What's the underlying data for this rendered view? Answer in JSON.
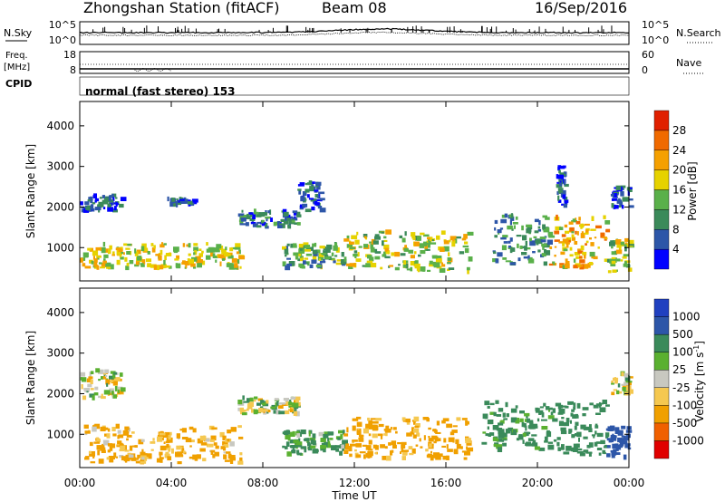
{
  "header": {
    "title": "Zhongshan Station (fitACF)",
    "beam": "Beam 08",
    "date": "16/Sep/2016"
  },
  "noise_panel": {
    "left_label": "N.Sky",
    "right_label": "N.Search",
    "left_ticks": [
      "10^5",
      "10^0"
    ],
    "right_ticks": [
      "10^5",
      "10^0"
    ]
  },
  "freq_panel": {
    "left_label_1": "Freq.",
    "left_label_2": "[MHz]",
    "left_ticks": [
      "18",
      "8"
    ],
    "right_label": "Nave",
    "right_ticks": [
      "60",
      "0"
    ],
    "cpid_label": "CPID"
  },
  "mode_text": "normal (fast stereo) 153",
  "x_axis": {
    "label": "Time UT",
    "ticks": [
      "00:00",
      "04:00",
      "08:00",
      "12:00",
      "16:00",
      "20:00",
      "00:00"
    ]
  },
  "power_panel": {
    "ylabel": "Slant Range [km]",
    "yticks": [
      "1000",
      "2000",
      "3000",
      "4000"
    ],
    "colorbar_title": "Power [dB]",
    "colorbar_labels": [
      "4",
      "8",
      "12",
      "16",
      "20",
      "24",
      "28"
    ],
    "colors": [
      "#0000ff",
      "#2d56a8",
      "#3b8a5a",
      "#5ab04a",
      "#e6d200",
      "#f5a000",
      "#f06a00",
      "#e02000"
    ]
  },
  "velocity_panel": {
    "ylabel": "Slant Range [km]",
    "yticks": [
      "1000",
      "2000",
      "3000",
      "4000"
    ],
    "colorbar_title": "Velocity [m s",
    "colorbar_sup": "-1",
    "colorbar_close": "]",
    "colorbar_labels": [
      "-1000",
      "-500",
      "-100",
      "-25",
      "25",
      "100",
      "500",
      "1000"
    ],
    "colors": [
      "#e00000",
      "#f06000",
      "#f0a000",
      "#f5c850",
      "#c8c8c0",
      "#5ab030",
      "#3a8a5a",
      "#2d56a8",
      "#2040c0"
    ]
  },
  "chart_data": [
    {
      "type": "heatmap",
      "title": "Power [dB]",
      "xlabel": "Time UT",
      "ylabel": "Slant Range [km]",
      "xlim": [
        0,
        24
      ],
      "ylim": [
        180,
        4600
      ],
      "colorbar": [
        4,
        8,
        12,
        16,
        20,
        24,
        28
      ],
      "regions": [
        {
          "x": [
            0.0,
            7.0
          ],
          "y": [
            500,
            1100
          ],
          "level": 20
        },
        {
          "x": [
            0.0,
            1.8
          ],
          "y": [
            1900,
            2300
          ],
          "level": 8
        },
        {
          "x": [
            3.8,
            5.0
          ],
          "y": [
            2050,
            2200
          ],
          "level": 8
        },
        {
          "x": [
            6.9,
            9.5
          ],
          "y": [
            1500,
            1900
          ],
          "level": 10
        },
        {
          "x": [
            9.5,
            10.5
          ],
          "y": [
            1900,
            2600
          ],
          "level": 8
        },
        {
          "x": [
            8.8,
            11.5
          ],
          "y": [
            500,
            1100
          ],
          "level": 14
        },
        {
          "x": [
            11.5,
            17.0
          ],
          "y": [
            400,
            1400
          ],
          "level": 18
        },
        {
          "x": [
            18.0,
            20.5
          ],
          "y": [
            600,
            1800
          ],
          "level": 12
        },
        {
          "x": [
            20.5,
            23.0
          ],
          "y": [
            500,
            1800
          ],
          "level": 22
        },
        {
          "x": [
            23.0,
            24.0
          ],
          "y": [
            400,
            1200
          ],
          "level": 18
        },
        {
          "x": [
            20.8,
            21.2
          ],
          "y": [
            2000,
            3000
          ],
          "level": 8
        },
        {
          "x": [
            23.2,
            24.0
          ],
          "y": [
            2000,
            2500
          ],
          "level": 8
        }
      ]
    },
    {
      "type": "heatmap",
      "title": "Velocity [m s-1]",
      "xlabel": "Time UT",
      "ylabel": "Slant Range [km]",
      "xlim": [
        0,
        24
      ],
      "ylim": [
        180,
        4600
      ],
      "colorbar": [
        -1000,
        -500,
        -100,
        -25,
        25,
        100,
        500,
        1000
      ],
      "regions": [
        {
          "x": [
            0.0,
            7.0
          ],
          "y": [
            300,
            1200
          ],
          "level": -150
        },
        {
          "x": [
            0.0,
            1.8
          ],
          "y": [
            1900,
            2600
          ],
          "level": 0
        },
        {
          "x": [
            6.9,
            9.5
          ],
          "y": [
            1500,
            1900
          ],
          "level": 0
        },
        {
          "x": [
            8.8,
            11.5
          ],
          "y": [
            500,
            1100
          ],
          "level": 150
        },
        {
          "x": [
            11.5,
            17.0
          ],
          "y": [
            400,
            1400
          ],
          "level": -200
        },
        {
          "x": [
            17.5,
            20.5
          ],
          "y": [
            600,
            1800
          ],
          "level": 200
        },
        {
          "x": [
            20.5,
            23.0
          ],
          "y": [
            500,
            1800
          ],
          "level": 300
        },
        {
          "x": [
            23.0,
            24.0
          ],
          "y": [
            400,
            1200
          ],
          "level": 800
        },
        {
          "x": [
            23.2,
            24.0
          ],
          "y": [
            2000,
            2500
          ],
          "level": 0
        }
      ]
    }
  ]
}
